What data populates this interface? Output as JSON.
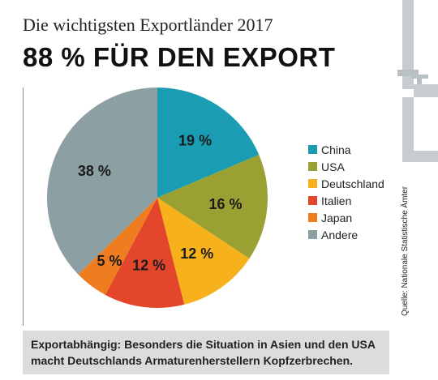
{
  "header": {
    "subtitle": "Die wichtigsten Exportländer 2017",
    "title": "88 % FÜR DEN EXPORT"
  },
  "source": "Quelle: Nationale Statistische Ämter",
  "footer": {
    "line1": "Exportabhängig: Besonders die Situation in Asien und den USA",
    "line2": "macht Deutschlands Armaturenherstellern Kopfzerbrechen."
  },
  "colors": {
    "China": "#1a9db3",
    "USA": "#9aa132",
    "Deutschland": "#f7b21b",
    "Italien": "#e4462b",
    "Japan": "#ef7d1f",
    "Andere": "#8c9fa3",
    "pipe": "#c6ccd0"
  },
  "chart_data": {
    "type": "pie",
    "title": "88 % FÜR DEN EXPORT",
    "subtitle": "Die wichtigsten Exportländer 2017",
    "categories": [
      "China",
      "USA",
      "Deutschland",
      "Italien",
      "Japan",
      "Andere"
    ],
    "values": [
      19,
      16,
      12,
      12,
      5,
      38
    ],
    "labels": [
      "19 %",
      "16 %",
      "12 %",
      "12 %",
      "5 %",
      "38 %"
    ],
    "unit": "%",
    "legend_position": "right"
  }
}
